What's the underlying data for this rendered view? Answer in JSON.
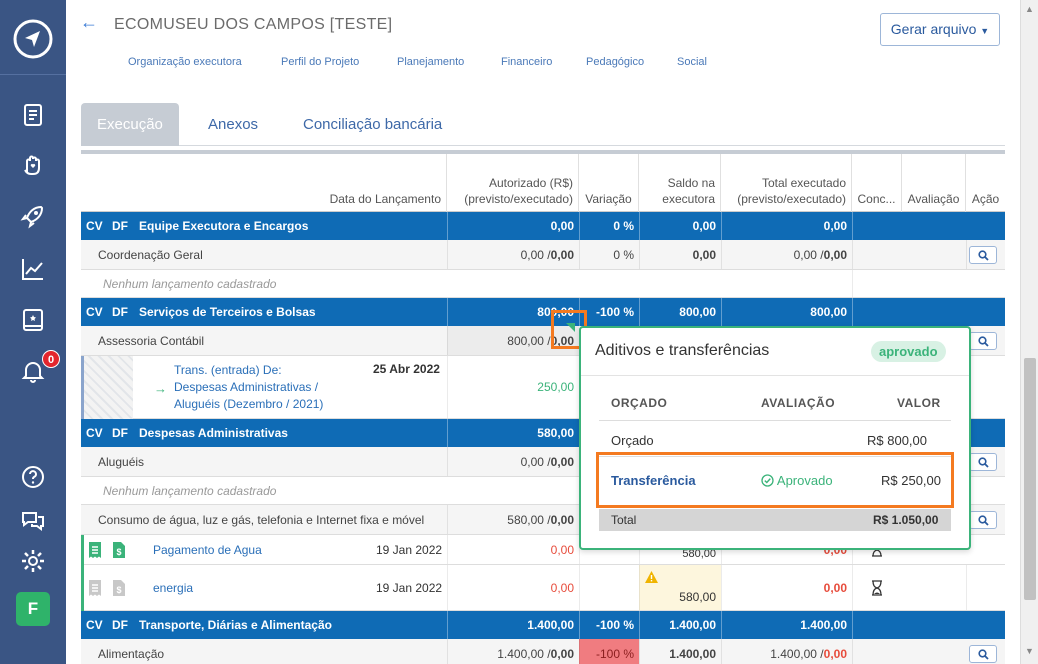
{
  "header": {
    "title": "ECOMUSEU DOS CAMPOS [TESTE]",
    "gerar_label": "Gerar arquivo"
  },
  "nav": [
    "Organização executora",
    "Perfil do Projeto",
    "Planejamento",
    "Financeiro",
    "Pedagógico",
    "Social"
  ],
  "tabs": [
    "Execução",
    "Anexos",
    "Conciliação bancária"
  ],
  "sidebar": {
    "badge": "0",
    "avatar": "F"
  },
  "columns": {
    "data": "Data do Lançamento",
    "autorizado": "Autorizado (R$) (previsto/executado)",
    "variacao": "Variação",
    "saldo": "Saldo na executora",
    "total": "Total executado (previsto/executado)",
    "conc": "Conc...",
    "avaliacao": "Avaliação",
    "acao": "Ação"
  },
  "rows": {
    "cat1": {
      "cv": "CV",
      "df": "DF",
      "name": "Equipe Executora e Encargos",
      "aut": "0,00",
      "var": "0 %",
      "saldo": "0,00",
      "total": "0,00"
    },
    "sub1": {
      "name": "Coordenação Geral",
      "aut_p": "0,00 / ",
      "aut_e": "0,00",
      "var": "0 %",
      "saldo": "0,00",
      "tot_p": "0,00 / ",
      "tot_e": "0,00"
    },
    "empty1": "Nenhum lançamento cadastrado",
    "cat2": {
      "cv": "CV",
      "df": "DF",
      "name": "Serviços de Terceiros e Bolsas",
      "aut": "800,00",
      "var": "-100 %",
      "saldo": "800,00",
      "total": "800,00"
    },
    "sub2": {
      "name": "Assessoria Contábil",
      "aut_p": "800,00 / ",
      "aut_e": "0,00"
    },
    "entry1": {
      "l1": "Trans. (entrada)   De:",
      "l2": "Despesas Administrativas /",
      "l3": "Aluguéis (Dezembro / 2021)",
      "date": "25 Abr 2022",
      "aut": "250,00"
    },
    "cat3": {
      "cv": "CV",
      "df": "DF",
      "name": "Despesas Administrativas",
      "aut": "580,00"
    },
    "sub3": {
      "name": "Aluguéis",
      "aut_p": "0,00 / ",
      "aut_e": "0,00"
    },
    "empty2": "Nenhum lançamento cadastrado",
    "sub4": {
      "name": "Consumo de água, luz e gás, telefonia e Internet fixa e móvel",
      "aut_p": "580,00 / ",
      "aut_e": "0,00"
    },
    "entry2": {
      "name": "Pagamento de Agua",
      "date": "19 Jan 2022",
      "aut": "0,00",
      "saldo": "580,00",
      "total": "0,00"
    },
    "entry3": {
      "name": "energia",
      "date": "19 Jan 2022",
      "aut": "0,00",
      "saldo": "580,00",
      "total": "0,00"
    },
    "cat4": {
      "cv": "CV",
      "df": "DF",
      "name": "Transporte, Diárias e Alimentação",
      "aut": "1.400,00",
      "var": "-100 %",
      "saldo": "1.400,00",
      "total": "1.400,00"
    },
    "sub5": {
      "name": "Alimentação",
      "aut_p": "1.400,00 / ",
      "aut_e": "0,00",
      "var": "-100 %",
      "saldo": "1.400,00",
      "tot_p": "1.400,00 / ",
      "tot_e": "0,00"
    }
  },
  "popup": {
    "title": "Aditivos e transferências",
    "status": "aprovado",
    "col_orcado": "ORÇADO",
    "col_avaliacao": "AVALIAÇÃO",
    "col_valor": "VALOR",
    "orcado_label": "Orçado",
    "orcado_valor": "R$ 800,00",
    "transf_label": "Transferência",
    "transf_aval": "Aprovado",
    "transf_valor": "R$ 250,00",
    "total_label": "Total",
    "total_valor": "R$ 1.050,00"
  },
  "colors": {
    "sidebar": "#3a5584",
    "category": "#0f6bb5",
    "accent": "#3bb37a",
    "highlight": "#f47a20",
    "negative": "#e74c3c"
  },
  "icons": [
    "navigation-logo-icon",
    "document-icon",
    "hand-heart-icon",
    "rocket-icon",
    "chart-icon",
    "book-icon",
    "bell-icon",
    "help-icon",
    "chat-icon",
    "gear-icon",
    "search-icon",
    "hourglass-icon",
    "receipt-icon",
    "dollar-file-icon",
    "warning-icon",
    "arrow-right-icon",
    "check-circle-icon",
    "back-arrow-icon"
  ]
}
